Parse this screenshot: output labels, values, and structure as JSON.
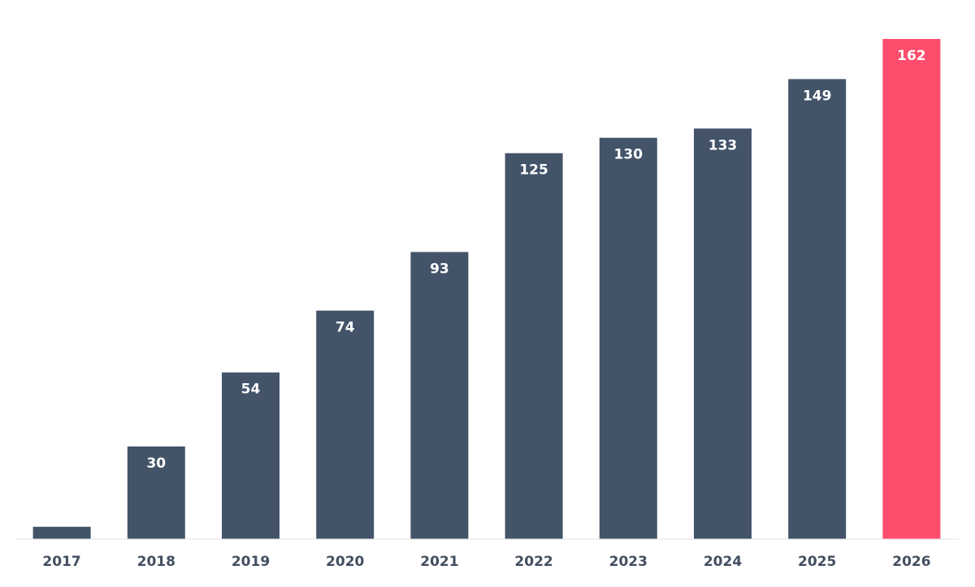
{
  "chart_data": {
    "type": "bar",
    "categories": [
      "2017",
      "2018",
      "2019",
      "2020",
      "2021",
      "2022",
      "2023",
      "2024",
      "2025",
      "2026"
    ],
    "values": [
      4,
      30,
      54,
      74,
      93,
      125,
      130,
      133,
      149,
      162
    ],
    "value_labels": [
      "",
      "30",
      "54",
      "74",
      "93",
      "125",
      "130",
      "133",
      "149",
      "162"
    ],
    "title": "",
    "xlabel": "",
    "ylabel": "",
    "ylim": [
      0,
      162
    ],
    "grid": false,
    "legend": "none",
    "highlight_index": 9,
    "colors": {
      "bar": "#435469",
      "highlight": "#ff4d6d",
      "axis": "#e3e3e3",
      "tick_text": "#424f60",
      "label_text": "#ffffff"
    }
  }
}
